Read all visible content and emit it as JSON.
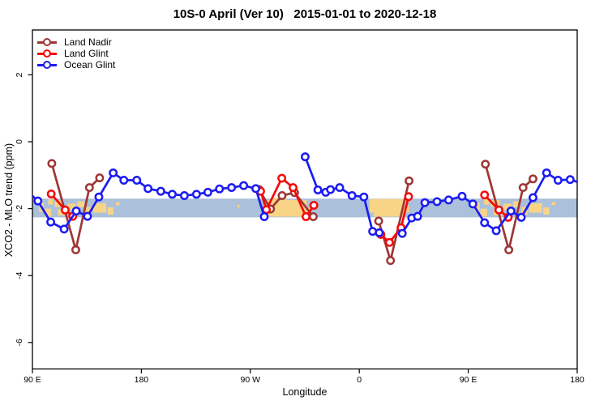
{
  "title": "10S-0 April (Ver 10)   2015-01-01 to 2020-12-18",
  "x_axis": {
    "label": "Longitude",
    "ticks": [
      {
        "lon": 90,
        "label": "90 E"
      },
      {
        "lon": 180,
        "label": "180"
      },
      {
        "lon": 270,
        "label": "90 W"
      },
      {
        "lon": 360,
        "label": "0"
      },
      {
        "lon": 450,
        "label": "90 E"
      },
      {
        "lon": 540,
        "label": "180"
      }
    ]
  },
  "y_axis": {
    "label": "XCO2 - MLO trend (ppm)",
    "ticks": [
      {
        "v": 2,
        "label": "2"
      },
      {
        "v": 0,
        "label": "0"
      },
      {
        "v": -2,
        "label": "-2"
      },
      {
        "v": -4,
        "label": "-4"
      },
      {
        "v": -6,
        "label": "-6"
      }
    ]
  },
  "colors": {
    "land_nadir": "#9e3636",
    "land_glint": "#f60909",
    "ocean_glint": "#1b1bf2",
    "reference_band": "#abc0da",
    "land_map": "#f8d487",
    "axis": "#000000"
  },
  "chart_data": {
    "type": "line",
    "title": "10S-0 April (Ver 10)   2015-01-01 to 2020-12-18",
    "xlabel": "Longitude",
    "ylabel": "XCO2 - MLO trend (ppm)",
    "xlim": [
      90,
      540
    ],
    "xlim_note": "longitude axis wraps: 90E, 180, 90W, 0, 90E, 180",
    "ylim": [
      -6.8,
      3.3
    ],
    "grid": false,
    "legend_position": "top-left",
    "reference_band": {
      "from": -1.7,
      "to": -2.26,
      "color": "#abc0da"
    },
    "land_map_overlay": {
      "color": "#f8d487",
      "regions": [
        [
          95.5,
          99.5,
          -1.82,
          -2.1
        ],
        [
          100,
          105.5,
          -2.0,
          -2.24
        ],
        [
          103,
          107,
          -1.72,
          -1.88
        ],
        [
          108.5,
          116,
          -1.74,
          -1.95
        ],
        [
          111,
          118,
          -2.02,
          -2.2
        ],
        [
          119,
          126,
          -1.85,
          -2.05
        ],
        [
          127,
          133,
          -1.78,
          -1.96
        ],
        [
          134,
          139,
          -1.95,
          -2.18
        ],
        [
          140,
          151,
          -1.84,
          -2.12
        ],
        [
          152,
          157,
          -1.96,
          -2.18
        ],
        [
          159,
          162,
          -1.8,
          -1.9
        ],
        [
          259.5,
          261,
          -1.88,
          -1.98
        ],
        [
          283.5,
          316.5,
          -1.74,
          -2.24
        ],
        [
          287,
          300,
          -1.67,
          -1.74
        ],
        [
          316.5,
          319.5,
          -1.98,
          -2.24
        ],
        [
          368.5,
          399.5,
          -1.71,
          -2.12
        ],
        [
          372,
          397,
          -2.12,
          -2.24
        ],
        [
          399.5,
          401,
          -1.9,
          -2.1
        ],
        [
          455.5,
          459.5,
          -1.82,
          -2.1
        ],
        [
          460,
          465.5,
          -2.0,
          -2.24
        ],
        [
          463,
          467,
          -1.72,
          -1.88
        ],
        [
          468.5,
          476,
          -1.74,
          -1.95
        ],
        [
          471,
          478,
          -2.02,
          -2.2
        ],
        [
          479,
          486,
          -1.85,
          -2.05
        ],
        [
          487,
          493,
          -1.78,
          -1.96
        ],
        [
          494,
          499,
          -1.95,
          -2.18
        ],
        [
          500,
          511,
          -1.84,
          -2.12
        ],
        [
          512,
          517,
          -1.96,
          -2.18
        ],
        [
          519,
          522,
          -1.8,
          -1.9
        ]
      ]
    },
    "series": [
      {
        "name": "Land Nadir",
        "color": "#9e3636",
        "segments": [
          [
            [
              106,
              -0.65
            ],
            [
              125.8,
              -3.23
            ],
            [
              137.1,
              -1.37
            ],
            [
              145.5,
              -1.08
            ]
          ],
          [
            [
              277.3,
              -1.43
            ],
            [
              286.7,
              -2.01
            ],
            [
              296.2,
              -1.61
            ],
            [
              306.5,
              -1.52
            ],
            [
              322,
              -2.24
            ]
          ],
          [
            [
              376,
              -2.37
            ],
            [
              385.8,
              -3.55
            ],
            [
              401.1,
              -1.17
            ]
          ],
          [
            [
              464.2,
              -0.67
            ],
            [
              483.5,
              -3.23
            ],
            [
              495.3,
              -1.37
            ],
            [
              503.5,
              -1.11
            ]
          ]
        ]
      },
      {
        "name": "Land Glint",
        "color": "#f60909",
        "segments": [
          [
            [
              105.5,
              -1.56
            ],
            [
              117.1,
              -2.04
            ],
            [
              123.3,
              -2.23
            ]
          ],
          [
            [
              278.5,
              -1.48
            ],
            [
              283.3,
              -2.03
            ],
            [
              296,
              -1.09
            ],
            [
              305.3,
              -1.37
            ],
            [
              316,
              -2.24
            ],
            [
              322.5,
              -1.9
            ]
          ],
          [
            [
              377.8,
              -2.77
            ],
            [
              384.9,
              -3.01
            ],
            [
              394.5,
              -2.57
            ],
            [
              400.7,
              -1.64
            ]
          ],
          [
            [
              463.5,
              -1.59
            ],
            [
              475.3,
              -2.04
            ],
            [
              483,
              -2.26
            ]
          ]
        ]
      },
      {
        "name": "Ocean Glint",
        "color": "#1b1bf2",
        "segments": [
          [
            [
              90,
              -1.62,
              0
            ],
            [
              94.5,
              -1.77
            ],
            [
              105.1,
              -2.4
            ],
            [
              116.2,
              -2.61
            ],
            [
              126.2,
              -2.07
            ],
            [
              135.5,
              -2.23
            ],
            [
              144.9,
              -1.65
            ],
            [
              156.7,
              -0.93
            ],
            [
              165.5,
              -1.15
            ],
            [
              176.2,
              -1.15
            ],
            [
              185.5,
              -1.4
            ],
            [
              196,
              -1.48
            ],
            [
              205.5,
              -1.57
            ],
            [
              215.5,
              -1.61
            ],
            [
              225.5,
              -1.57
            ],
            [
              234.9,
              -1.51
            ],
            [
              244.5,
              -1.41
            ],
            [
              254.5,
              -1.37
            ],
            [
              264.5,
              -1.31
            ],
            [
              274.5,
              -1.4
            ],
            [
              281.5,
              -2.24
            ]
          ],
          [
            [
              315.3,
              -0.45
            ],
            [
              325.8,
              -1.44
            ],
            [
              332.3,
              -1.51
            ],
            [
              336.2,
              -1.43
            ],
            [
              343.8,
              -1.37
            ],
            [
              354,
              -1.61
            ],
            [
              363.8,
              -1.65
            ],
            [
              371,
              -2.68
            ],
            [
              376.5,
              -2.72
            ]
          ],
          [
            [
              395.5,
              -2.74
            ],
            [
              403.3,
              -2.28
            ],
            [
              408.2,
              -2.23
            ],
            [
              414.2,
              -1.82
            ],
            [
              424.2,
              -1.79
            ],
            [
              433.8,
              -1.74
            ],
            [
              444.9,
              -1.63
            ],
            [
              453.8,
              -1.86
            ],
            [
              463.5,
              -2.42
            ],
            [
              473.1,
              -2.66
            ],
            [
              485.3,
              -2.07
            ],
            [
              493.8,
              -2.26
            ],
            [
              503.5,
              -1.67
            ],
            [
              514.7,
              -0.93
            ],
            [
              524.2,
              -1.15
            ],
            [
              534.2,
              -1.13
            ],
            [
              540,
              -1.2,
              0
            ]
          ]
        ]
      }
    ]
  }
}
